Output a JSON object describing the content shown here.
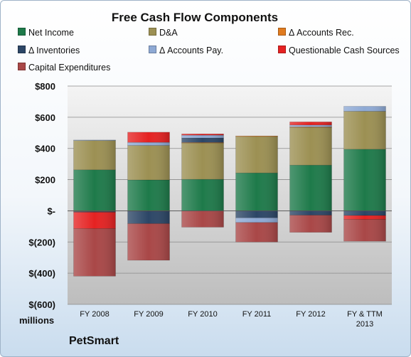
{
  "chart_data": {
    "type": "bar",
    "stacked": true,
    "title": "Free Cash Flow Components",
    "unit_label": "millions",
    "company": "PetSmart",
    "categories": [
      [
        "FY 2008"
      ],
      [
        "FY 2009"
      ],
      [
        "FY 2010"
      ],
      [
        "FY 2011"
      ],
      [
        "FY 2012"
      ],
      [
        "FY & TTM",
        "2013"
      ]
    ],
    "ylim": [
      -600,
      800
    ],
    "yticks": [
      {
        "value": 800,
        "label": "$800"
      },
      {
        "value": 600,
        "label": "$600"
      },
      {
        "value": 400,
        "label": "$400"
      },
      {
        "value": 200,
        "label": "$200"
      },
      {
        "value": 0,
        "label": "$-"
      },
      {
        "value": -200,
        "label": "$(200)"
      },
      {
        "value": -400,
        "label": "$(400)"
      },
      {
        "value": -600,
        "label": "$(600)"
      }
    ],
    "grid": true,
    "legend_position": "top",
    "series": [
      {
        "name": "Net Income",
        "color": "#1e7a4a",
        "values": [
          263,
          198,
          202,
          243,
          293,
          395
        ]
      },
      {
        "name": "D&A",
        "color": "#9c9053",
        "values": [
          189,
          221,
          234,
          235,
          243,
          243
        ]
      },
      {
        "name": "Δ Accounts Rec.",
        "color": "#e07b1f",
        "values": [
          -4,
          -2,
          2,
          2,
          2,
          0
        ]
      },
      {
        "name": "Δ Inventories",
        "color": "#2c4666",
        "values": [
          -5,
          -80,
          29,
          -45,
          -28,
          -30
        ]
      },
      {
        "name": "Δ Accounts Pay.",
        "color": "#8ea9d4",
        "values": [
          2,
          20,
          18,
          -30,
          12,
          32
        ]
      },
      {
        "name": "Questionable Cash Sources",
        "color": "#e52222",
        "values": [
          -105,
          65,
          8,
          0,
          20,
          -25
        ]
      },
      {
        "name": "Capital Expenditures",
        "color": "#a94747",
        "values": [
          -305,
          -235,
          -105,
          -125,
          -110,
          -140
        ]
      }
    ]
  }
}
